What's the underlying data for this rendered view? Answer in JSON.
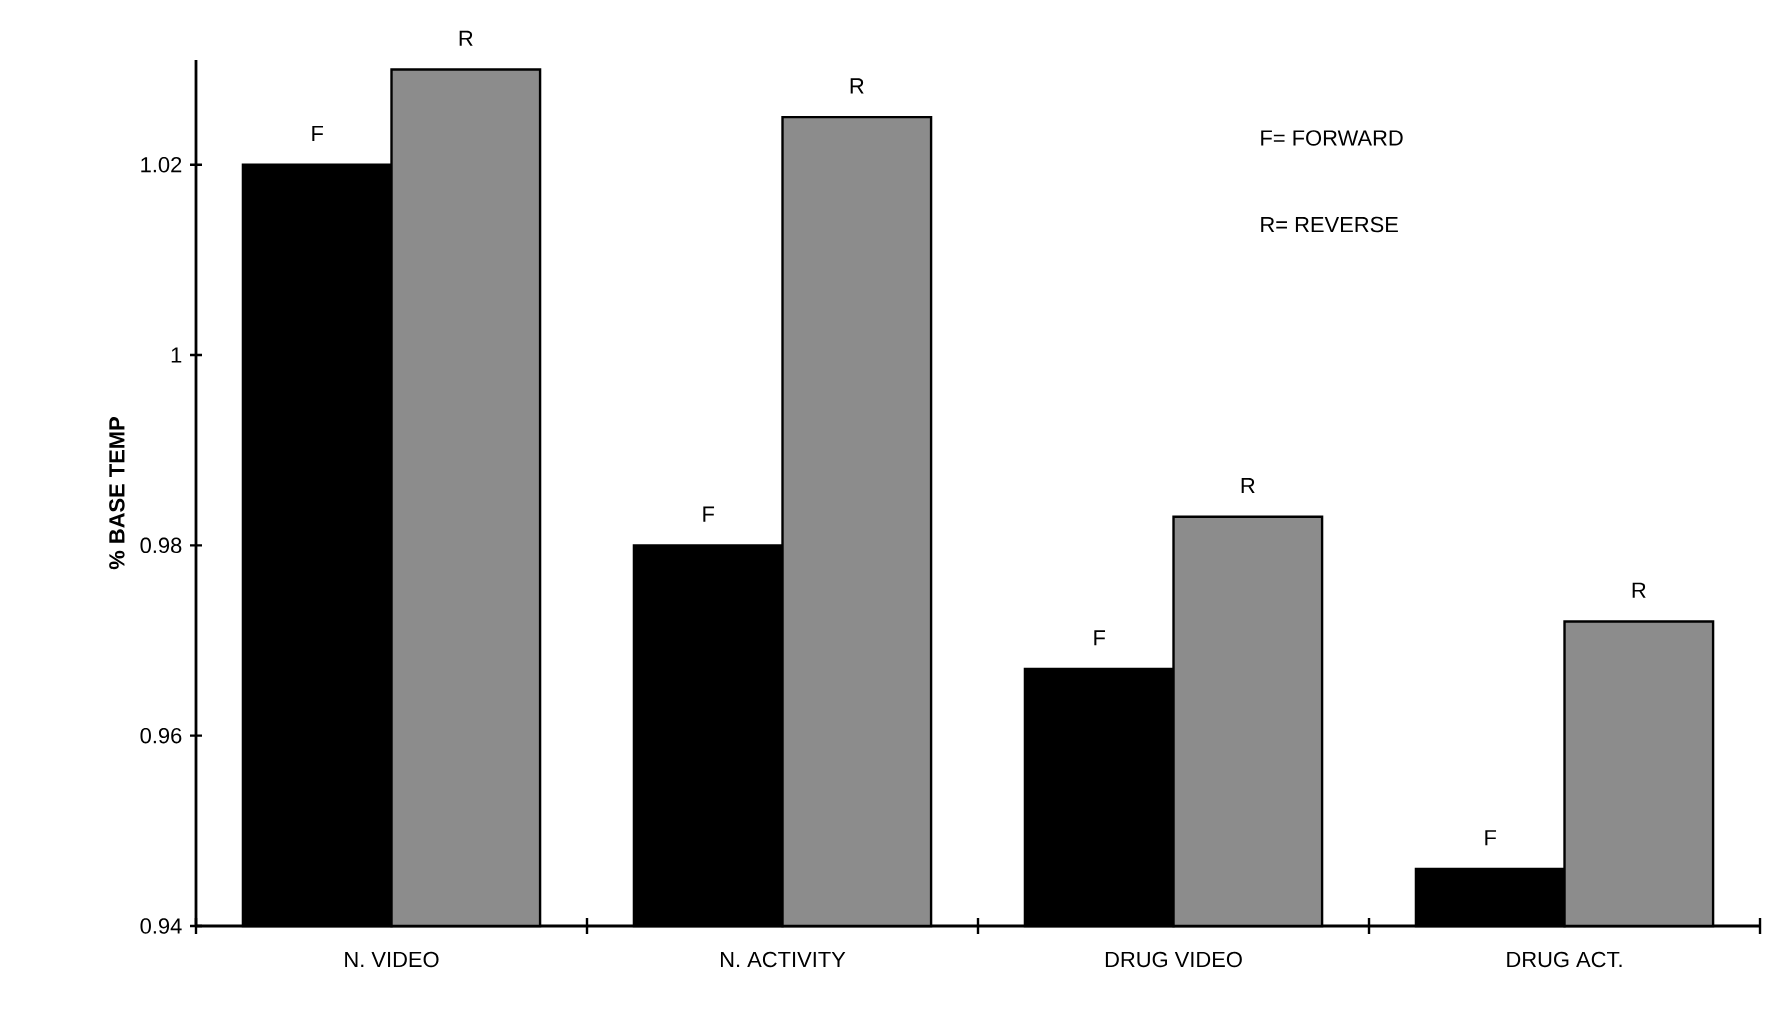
{
  "chart_data": {
    "type": "bar",
    "categories": [
      "N. VIDEO",
      "N. ACTIVITY",
      "DRUG VIDEO",
      "DRUG ACT."
    ],
    "series": [
      {
        "name": "F",
        "color": "#000000",
        "values": [
          1.02,
          0.98,
          0.967,
          0.946
        ]
      },
      {
        "name": "R",
        "color": "#8c8c8c",
        "values": [
          1.03,
          1.025,
          0.983,
          0.972
        ]
      }
    ],
    "ylabel": "% BASE TEMP",
    "ylim": [
      0.94,
      1.031
    ],
    "yticks": [
      0.94,
      0.96,
      0.98,
      1,
      1.02
    ],
    "annotations": [
      "F= FORWARD",
      "R= REVERSE"
    ]
  }
}
